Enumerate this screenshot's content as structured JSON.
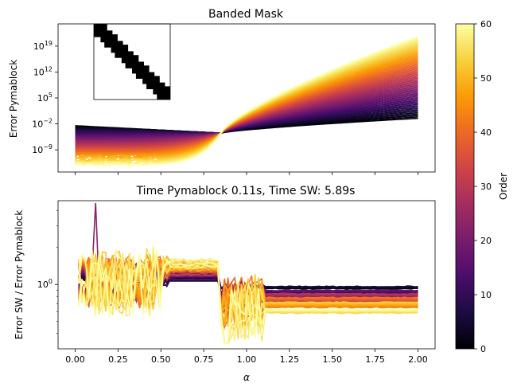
{
  "colorbar": {
    "label": "Order",
    "range": [
      0,
      60
    ],
    "ticks": [
      0,
      10,
      20,
      30,
      40,
      50,
      60
    ],
    "colormap": "inferno",
    "colormap_stops": [
      "#000004",
      "#1b0c41",
      "#4a0c6b",
      "#781c6d",
      "#a52c60",
      "#cf4446",
      "#ed6925",
      "#fb9b06",
      "#f7d13d",
      "#fcffa4"
    ]
  },
  "chart_data": [
    {
      "type": "line",
      "title": "Banded Mask",
      "ylabel": "Error Pymablock",
      "xlabel": "",
      "yscale": "log",
      "xlim": [
        -0.1,
        2.1
      ],
      "ylim_log10": [
        -15,
        25
      ],
      "ytick_labels": [
        {
          "exp": -9,
          "label": "10",
          "sup": "−9"
        },
        {
          "exp": -2,
          "label": "10",
          "sup": "−2"
        },
        {
          "exp": 5,
          "label": "10",
          "sup": "5"
        },
        {
          "exp": 12,
          "label": "10",
          "sup": "12"
        },
        {
          "exp": 19,
          "label": "10",
          "sup": "19"
        }
      ],
      "x_ticks": [
        0,
        0.25,
        0.5,
        0.75,
        1.0,
        1.25,
        1.5,
        1.75,
        2.0
      ],
      "x_tick_labels_shown": false,
      "series_by_order": {
        "orders": [
          1,
          60
        ],
        "count": 60,
        "x_range": [
          0.0,
          2.0
        ],
        "low_alpha_log10_error": {
          "order_1": -2.5,
          "order_60": -13.0
        },
        "crossover_alpha": 0.85,
        "crossover_log10_error": -4.5,
        "alpha_2_log10_error": {
          "order_1": -0.5,
          "order_60": 21.5
        }
      },
      "inset": {
        "type": "banded_mask",
        "blocks": 7,
        "band": "diagonal"
      }
    },
    {
      "type": "line",
      "title": "Time Pymablock 0.11s, Time SW: 5.89s",
      "ylabel": "Error SW / Error Pymablock",
      "xlabel": "α",
      "yscale": "log",
      "xlim": [
        -0.1,
        2.1
      ],
      "x_ticks": [
        0,
        0.25,
        0.5,
        0.75,
        1.0,
        1.25,
        1.5,
        1.75,
        2.0
      ],
      "x_tick_labels": [
        "0.00",
        "0.25",
        "0.50",
        "0.75",
        "1.00",
        "1.25",
        "1.50",
        "1.75",
        "2.00"
      ],
      "ytick_labels": [
        {
          "value": 1,
          "label": "10",
          "sup": "0"
        }
      ],
      "series_by_order": {
        "orders": [
          1,
          60
        ],
        "count": 60,
        "ratio_range": [
          0.3,
          4.8
        ],
        "plateau_alpha": [
          0.55,
          0.85
        ],
        "plateau_ratio": {
          "order_1": 1.0,
          "order_60": 1.6
        },
        "tail_alpha": [
          1.1,
          2.0
        ],
        "tail_ratio": {
          "order_1": 1.0,
          "order_60": 0.55
        }
      }
    }
  ]
}
